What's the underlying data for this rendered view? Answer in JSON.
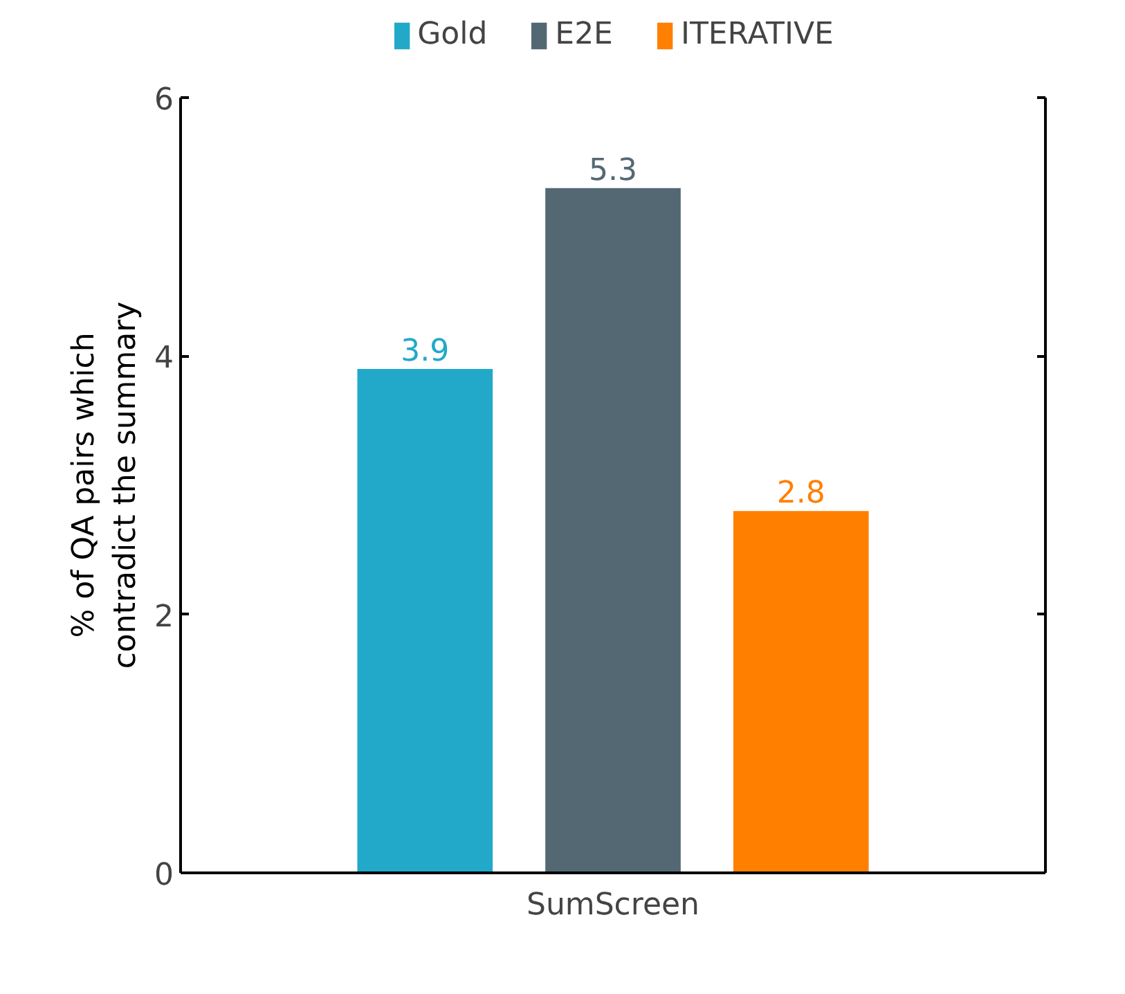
{
  "chart_data": {
    "type": "bar",
    "ylabel": "% of QA pairs which\ncontradict the summary",
    "categories": [
      "SumScreen"
    ],
    "series": [
      {
        "name": "Gold",
        "color": "#22a9c9",
        "values": [
          3.9
        ]
      },
      {
        "name": "E2E",
        "color": "#546873",
        "values": [
          5.3
        ]
      },
      {
        "name": "ITERATIVE",
        "color": "#ff8000",
        "values": [
          2.8
        ]
      }
    ],
    "ylim": [
      0,
      6
    ],
    "yticks": [
      0,
      2,
      4,
      6
    ],
    "data_labels": true,
    "legend": "top",
    "grid": false
  }
}
